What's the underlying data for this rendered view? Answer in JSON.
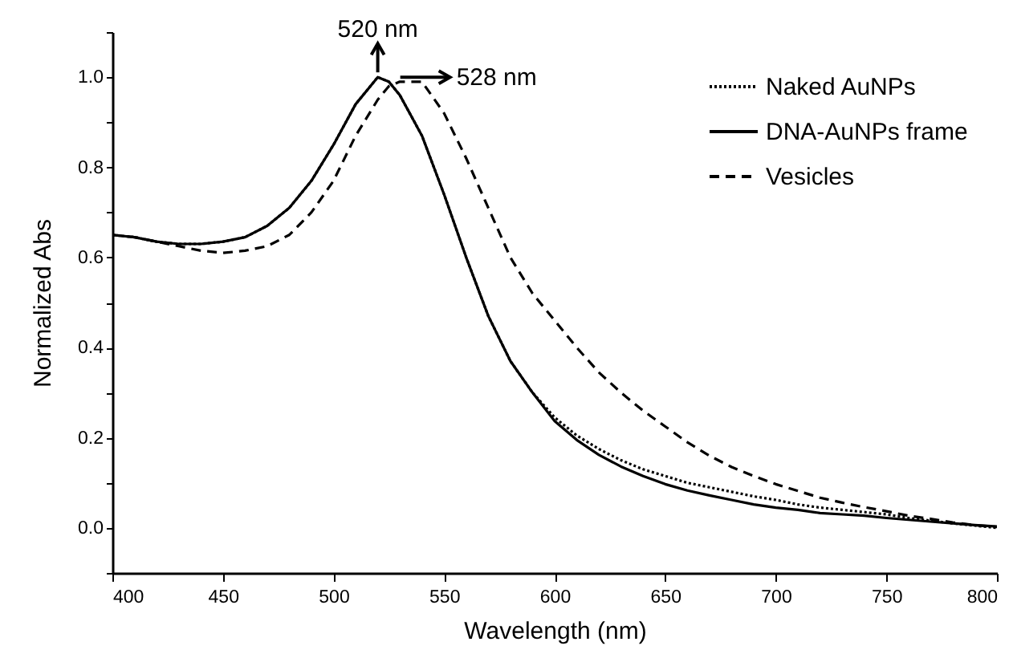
{
  "chart_data": {
    "type": "line",
    "xlabel": "Wavelength (nm)",
    "ylabel": "Normalized Abs",
    "xlim": [
      400,
      800
    ],
    "xticks": [
      400,
      450,
      500,
      550,
      600,
      650,
      700,
      750,
      800
    ],
    "ylim": [
      -0.1,
      1.1
    ],
    "yticks": [
      {
        "value": -0.1,
        "label": null
      },
      {
        "value": 0,
        "label": "0.0"
      },
      {
        "value": 0.1,
        "label": null
      },
      {
        "value": 0.2,
        "label": "0.2"
      },
      {
        "value": 0.3,
        "label": null
      },
      {
        "value": 0.4,
        "label": "0.4"
      },
      {
        "value": 0.5,
        "label": null
      },
      {
        "value": 0.6,
        "label": "0.6"
      },
      {
        "value": 0.7,
        "label": null
      },
      {
        "value": 0.8,
        "label": "0.8"
      },
      {
        "value": 0.9,
        "label": null
      },
      {
        "value": 1.0,
        "label": "1.0"
      },
      {
        "value": 1.1,
        "label": null
      }
    ],
    "grid": false,
    "legend": "top right",
    "marker": "none",
    "annotations": [
      {
        "text": "520 nm",
        "x": 520,
        "y": 1.0
      },
      {
        "text": "528 nm",
        "x": 528,
        "y": 1.0
      }
    ],
    "x": [
      400,
      410,
      420,
      430,
      440,
      450,
      460,
      470,
      480,
      490,
      500,
      510,
      520,
      525,
      530,
      540,
      550,
      560,
      570,
      580,
      590,
      600,
      610,
      620,
      630,
      640,
      650,
      660,
      670,
      680,
      690,
      700,
      710,
      720,
      730,
      740,
      750,
      760,
      770,
      780,
      790,
      800
    ],
    "series": [
      {
        "name": "Naked AuNPs",
        "color": "#000000",
        "line_style": "dotted",
        "values": [
          0.65,
          0.645,
          0.635,
          0.63,
          0.63,
          0.635,
          0.645,
          0.67,
          0.71,
          0.77,
          0.85,
          0.94,
          1.0,
          0.99,
          0.96,
          0.87,
          0.74,
          0.6,
          0.47,
          0.37,
          0.3,
          0.245,
          0.205,
          0.175,
          0.15,
          0.13,
          0.115,
          0.1,
          0.09,
          0.08,
          0.07,
          0.062,
          0.052,
          0.045,
          0.04,
          0.035,
          0.03,
          0.022,
          0.016,
          0.01,
          0.005,
          0.0
        ]
      },
      {
        "name": "DNA-AuNPs frame",
        "color": "#000000",
        "line_style": "solid",
        "values": [
          0.65,
          0.645,
          0.635,
          0.63,
          0.63,
          0.635,
          0.645,
          0.67,
          0.71,
          0.77,
          0.85,
          0.94,
          1.0,
          0.99,
          0.96,
          0.87,
          0.74,
          0.6,
          0.47,
          0.37,
          0.3,
          0.237,
          0.195,
          0.162,
          0.136,
          0.115,
          0.097,
          0.083,
          0.072,
          0.062,
          0.052,
          0.045,
          0.04,
          0.033,
          0.03,
          0.027,
          0.022,
          0.018,
          0.014,
          0.01,
          0.006,
          0.003
        ]
      },
      {
        "name": "Vesicles",
        "color": "#000000",
        "line_style": "dashed",
        "values": [
          0.65,
          0.645,
          0.635,
          0.625,
          0.615,
          0.61,
          0.615,
          0.625,
          0.65,
          0.7,
          0.77,
          0.87,
          0.95,
          0.98,
          0.99,
          0.99,
          0.92,
          0.82,
          0.71,
          0.6,
          0.52,
          0.46,
          0.4,
          0.345,
          0.3,
          0.26,
          0.225,
          0.19,
          0.16,
          0.135,
          0.115,
          0.097,
          0.082,
          0.067,
          0.056,
          0.046,
          0.037,
          0.027,
          0.02,
          0.012,
          0.006,
          0.002
        ]
      }
    ]
  }
}
